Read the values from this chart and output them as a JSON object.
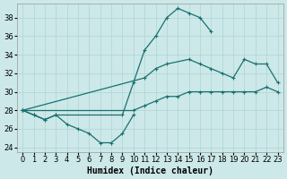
{
  "xlabel": "Humidex (Indice chaleur)",
  "xlim": [
    -0.5,
    23.5
  ],
  "ylim": [
    23.5,
    39.5
  ],
  "yticks": [
    24,
    26,
    28,
    30,
    32,
    34,
    36,
    38
  ],
  "xticks": [
    0,
    1,
    2,
    3,
    4,
    5,
    6,
    7,
    8,
    9,
    10,
    11,
    12,
    13,
    14,
    15,
    16,
    17,
    18,
    19,
    20,
    21,
    22,
    23
  ],
  "bg_color": "#cce8e8",
  "grid_color": "#aed4d4",
  "line_color": "#1a7070",
  "tick_fontsize": 6,
  "xlabel_fontsize": 7,
  "line1_x": [
    0,
    1,
    2,
    3,
    4,
    5,
    6,
    7,
    8,
    9,
    10
  ],
  "line1_y": [
    28.0,
    27.5,
    27.0,
    27.5,
    26.5,
    26.0,
    25.5,
    24.5,
    24.5,
    25.5,
    27.5
  ],
  "line2_x": [
    0,
    1,
    2,
    3,
    9,
    10,
    11,
    12,
    13,
    14,
    15,
    16,
    17
  ],
  "line2_y": [
    28.0,
    27.5,
    27.0,
    27.5,
    27.5,
    31.0,
    34.5,
    36.0,
    38.0,
    39.0,
    38.5,
    38.0,
    36.5
  ],
  "line3_x": [
    0,
    11,
    12,
    13,
    15,
    16,
    17,
    18,
    19,
    20,
    21,
    22,
    23
  ],
  "line3_y": [
    28.0,
    31.5,
    32.5,
    33.0,
    33.5,
    33.0,
    32.5,
    32.0,
    31.5,
    33.5,
    33.0,
    33.0,
    31.0
  ],
  "line4_x": [
    0,
    10,
    11,
    12,
    13,
    14,
    15,
    16,
    17,
    18,
    19,
    20,
    21,
    22,
    23
  ],
  "line4_y": [
    28.0,
    28.0,
    28.5,
    29.0,
    29.5,
    29.5,
    30.0,
    30.0,
    30.0,
    30.0,
    30.0,
    30.0,
    30.0,
    30.5,
    30.0
  ]
}
